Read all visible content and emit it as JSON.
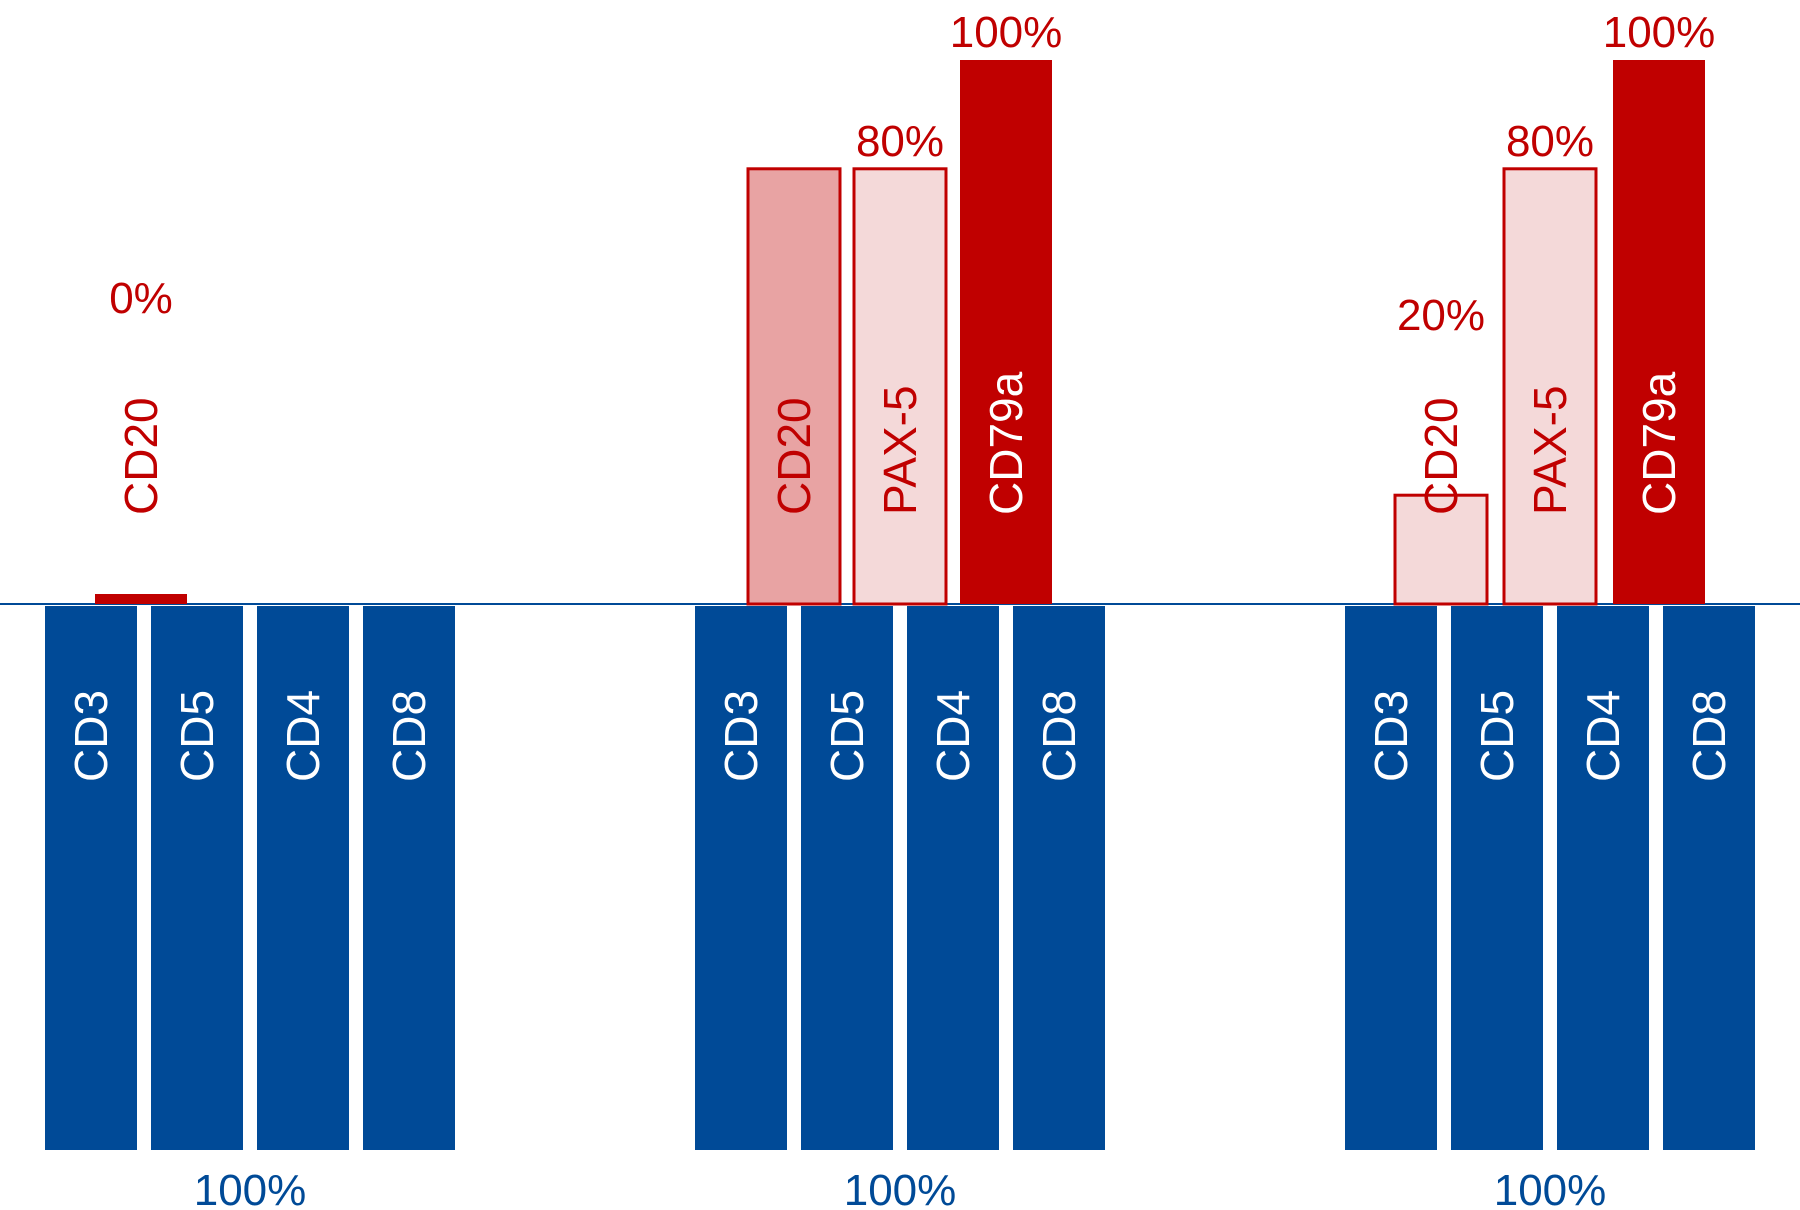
{
  "chart_data": {
    "type": "bar",
    "colors": {
      "t_cell": "#004a97",
      "b_cell": "#c00000",
      "b_light": "#f4d9d9",
      "b_medium": "#e8a3a3"
    },
    "groups": [
      {
        "positive_markers": [
          {
            "label": "CD20",
            "value": 0,
            "value_label": "0%",
            "style": "solid"
          }
        ],
        "negative_markers": {
          "value": 100,
          "value_label": "100%",
          "labels": [
            "CD3",
            "CD5",
            "CD4",
            "CD8"
          ]
        }
      },
      {
        "positive_markers": [
          {
            "label": "CD20",
            "value": 80,
            "value_label": "",
            "style": "medium"
          },
          {
            "label": "PAX-5",
            "value": 80,
            "value_label": "80%",
            "style": "light"
          },
          {
            "label": "CD79a",
            "value": 100,
            "value_label": "100%",
            "style": "solid"
          }
        ],
        "negative_markers": {
          "value": 100,
          "value_label": "100%",
          "labels": [
            "CD3",
            "CD5",
            "CD4",
            "CD8"
          ]
        }
      },
      {
        "positive_markers": [
          {
            "label": "CD20",
            "value": 20,
            "value_label": "20%",
            "style": "light"
          },
          {
            "label": "PAX-5",
            "value": 80,
            "value_label": "80%",
            "style": "light"
          },
          {
            "label": "CD79a",
            "value": 100,
            "value_label": "100%",
            "style": "solid"
          }
        ],
        "negative_markers": {
          "value": 100,
          "value_label": "100%",
          "labels": [
            "CD3",
            "CD5",
            "CD4",
            "CD8"
          ]
        }
      }
    ]
  }
}
